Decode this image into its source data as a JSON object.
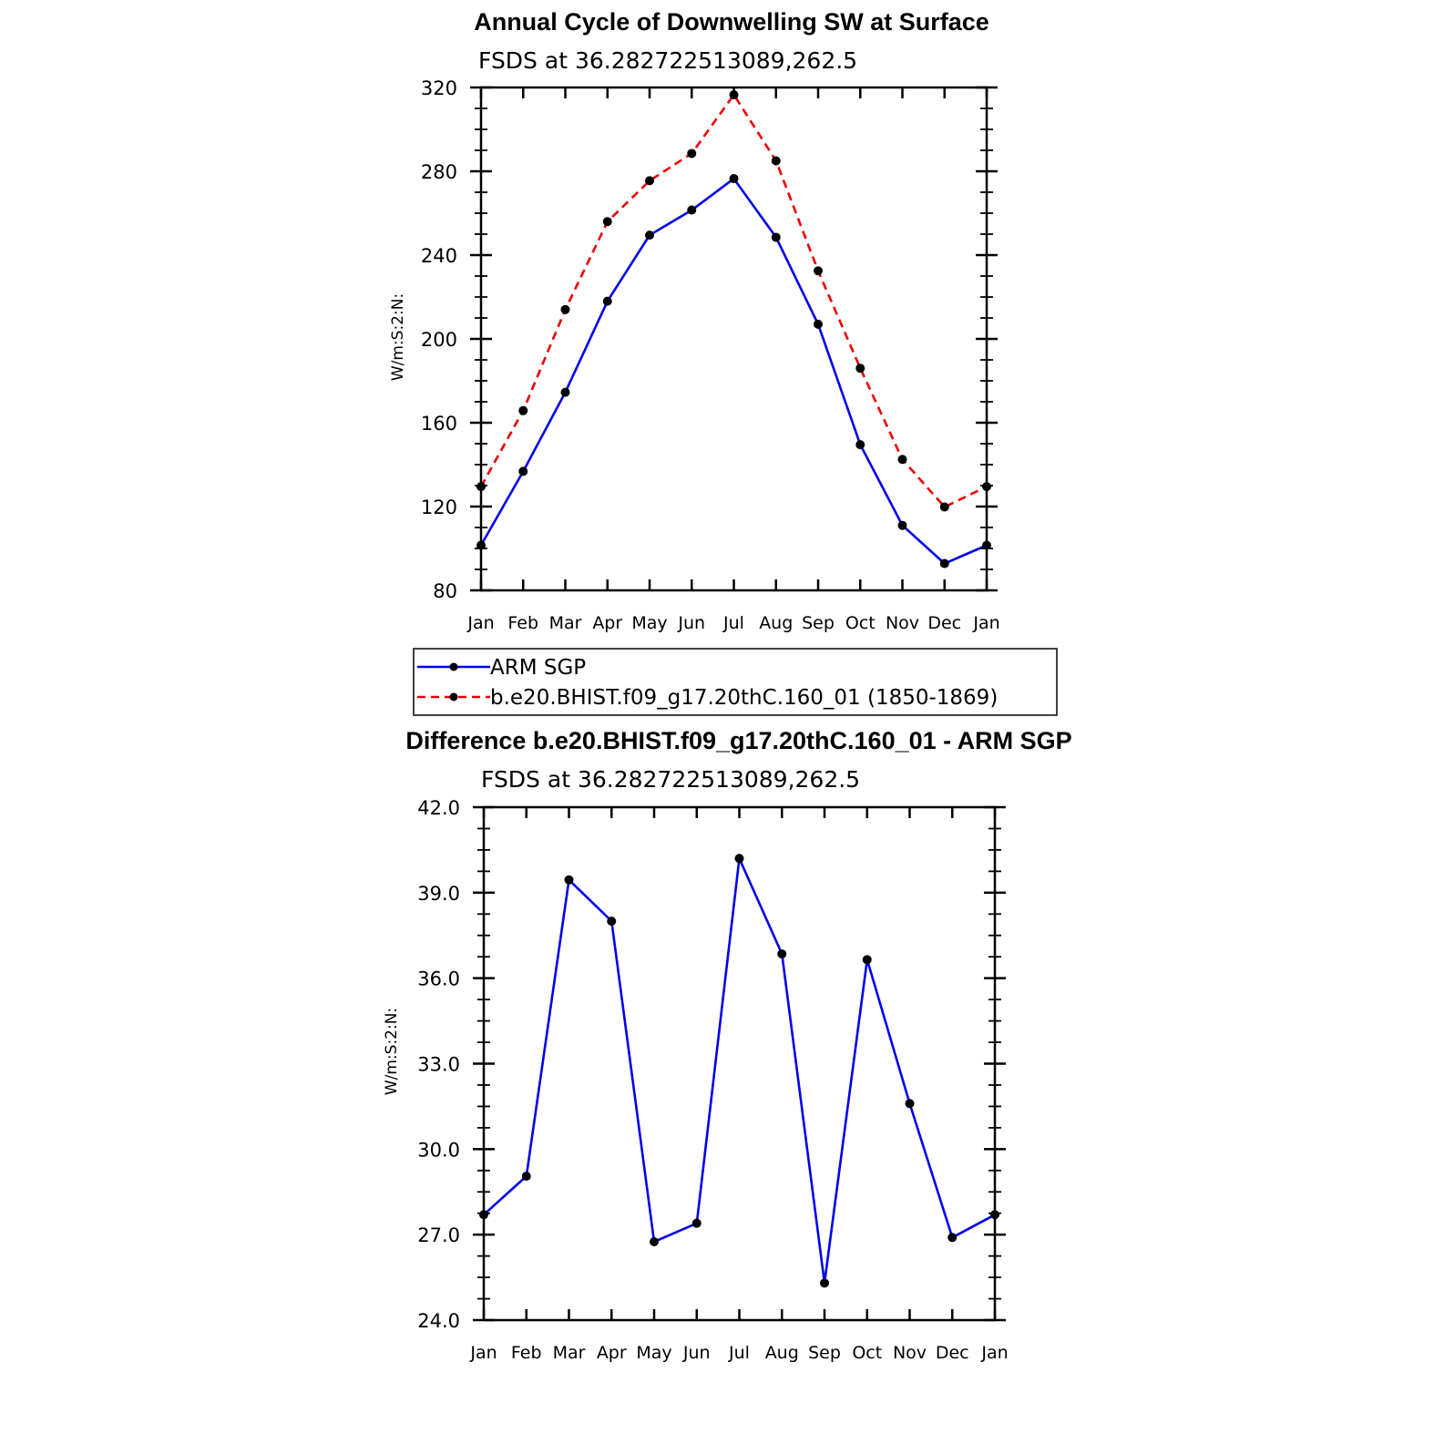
{
  "chart_data": [
    {
      "type": "line",
      "title": "Annual Cycle of Downwelling SW at Surface",
      "subtitle": "FSDS at 36.282722513089,262.5",
      "ylabel": "W/m:S:2:N:",
      "xlabel": "",
      "categories": [
        "Jan",
        "Feb",
        "Mar",
        "Apr",
        "May",
        "Jun",
        "Jul",
        "Aug",
        "Sep",
        "Oct",
        "Nov",
        "Dec",
        "Jan"
      ],
      "ylim": [
        80,
        320
      ],
      "yticks": [
        "80",
        "120",
        "160",
        "200",
        "240",
        "280",
        "320"
      ],
      "series": [
        {
          "name": "ARM SGP",
          "color": "#0000ee",
          "dash": "solid",
          "values": [
            101.5,
            136.8,
            174.5,
            218.0,
            249.5,
            261.5,
            276.5,
            248.5,
            207.0,
            149.5,
            111.0,
            92.8,
            101.5
          ]
        },
        {
          "name": "b.e20.BHIST.f09_g17.20thC.160_01 (1850-1869)",
          "color": "#ee0000",
          "dash": "dashed",
          "values": [
            129.5,
            165.8,
            214.0,
            256.0,
            275.5,
            288.5,
            316.5,
            285.0,
            232.5,
            186.0,
            142.5,
            119.8,
            129.5
          ]
        }
      ],
      "legend": "bottom"
    },
    {
      "type": "line",
      "title": "Difference b.e20.BHIST.f09_g17.20thC.160_01 - ARM SGP",
      "subtitle": "FSDS at 36.282722513089,262.5",
      "ylabel": "W/m:S:2:N:",
      "xlabel": "",
      "categories": [
        "Jan",
        "Feb",
        "Mar",
        "Apr",
        "May",
        "Jun",
        "Jul",
        "Aug",
        "Sep",
        "Oct",
        "Nov",
        "Dec",
        "Jan"
      ],
      "ylim": [
        24.0,
        42.0
      ],
      "yticks": [
        "24.0",
        "27.0",
        "30.0",
        "33.0",
        "36.0",
        "39.0",
        "42.0"
      ],
      "series": [
        {
          "name": "Difference",
          "color": "#0000ee",
          "dash": "solid",
          "values": [
            27.7,
            29.05,
            39.45,
            38.0,
            26.75,
            27.4,
            40.2,
            36.85,
            25.3,
            36.65,
            31.6,
            26.9,
            27.7
          ]
        }
      ]
    }
  ]
}
